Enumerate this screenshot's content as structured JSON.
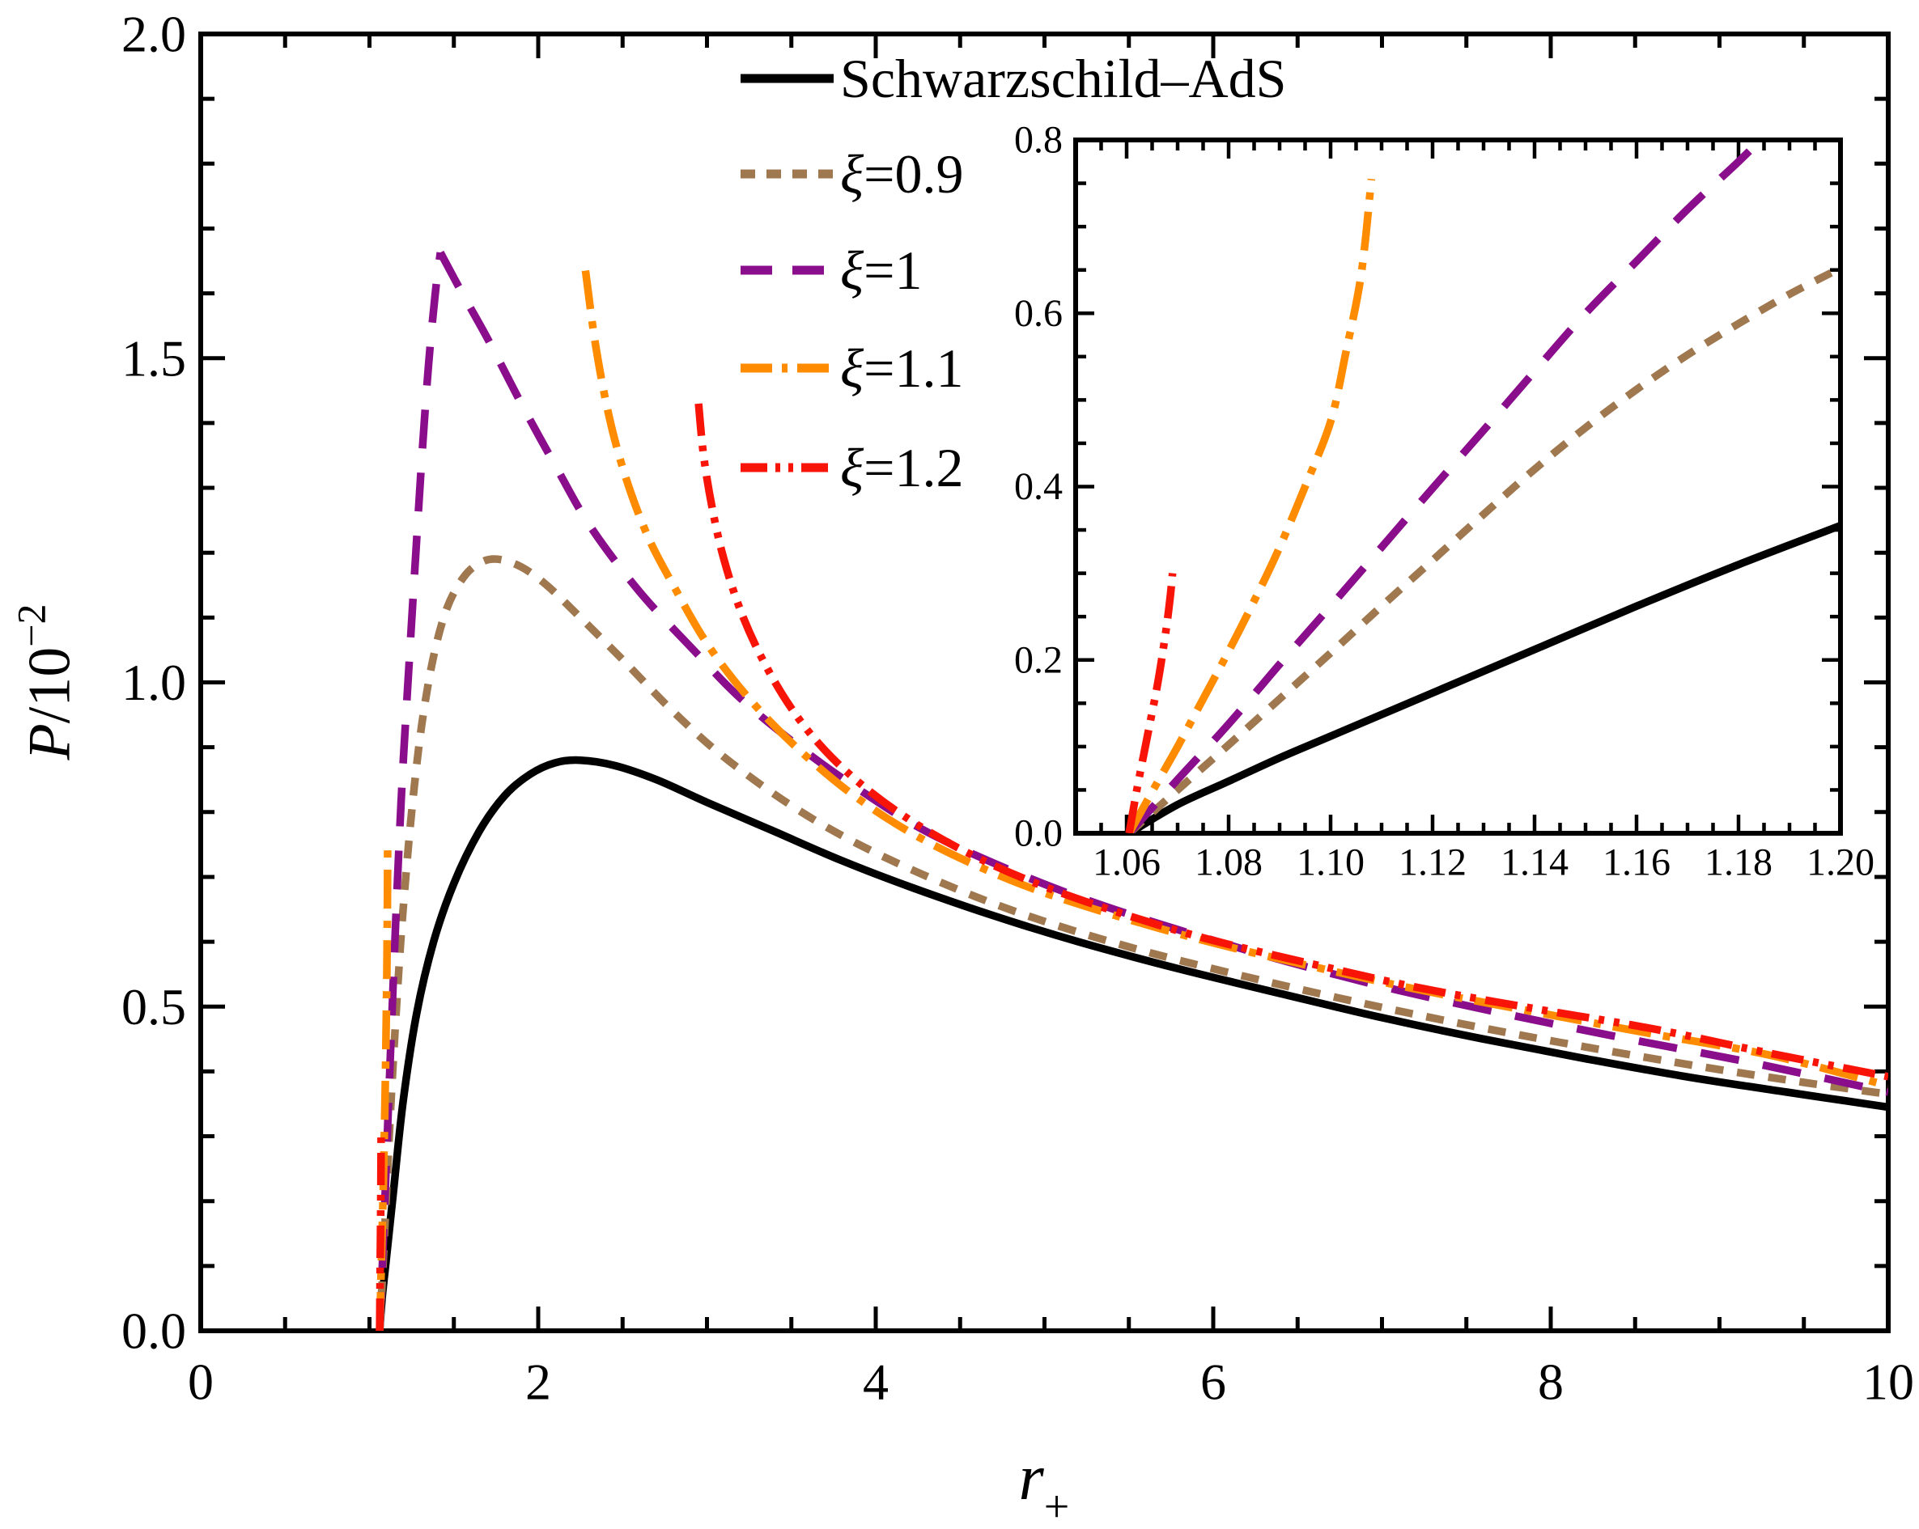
{
  "figure": {
    "background": "#ffffff",
    "text_color": "#000000"
  },
  "chart_data": {
    "type": "line",
    "title": "",
    "xlabel": {
      "base": "r",
      "sub": "+"
    },
    "ylabel": {
      "var": "P",
      "rest": "/10",
      "exp": "−2"
    },
    "grid": false,
    "legend_position": "top-center-inside",
    "main": {
      "xlim": [
        0,
        10
      ],
      "ylim": [
        0,
        2.0
      ],
      "xticks": {
        "major": [
          0,
          2,
          4,
          6,
          8,
          10
        ],
        "labels": [
          "0",
          "2",
          "4",
          "6",
          "8",
          "10"
        ],
        "minor_step": 0.5
      },
      "yticks": {
        "major": [
          0,
          0.5,
          1.0,
          1.5,
          2.0
        ],
        "labels": [
          "0.0",
          "0.5",
          "1.0",
          "1.5",
          "2.0"
        ],
        "minor_step": 0.1
      }
    },
    "inset": {
      "xlim": [
        1.05,
        1.2
      ],
      "ylim": [
        0,
        0.8
      ],
      "xticks": {
        "major": [
          1.06,
          1.08,
          1.1,
          1.12,
          1.14,
          1.16,
          1.18,
          1.2
        ],
        "labels": [
          "1.06",
          "1.08",
          "1.10",
          "1.12",
          "1.14",
          "1.16",
          "1.18",
          "1.20"
        ],
        "minor_step": 0.005
      },
      "yticks": {
        "major": [
          0,
          0.2,
          0.4,
          0.6,
          0.8
        ],
        "labels": [
          "0.0",
          "0.2",
          "0.4",
          "0.6",
          "0.8"
        ],
        "minor_step": 0.05
      }
    },
    "series": [
      {
        "name": "Schwarzschild–AdS",
        "label_sym": "",
        "label_rest": "Schwarzschild–AdS",
        "color": "#000000",
        "dash": "solid",
        "main_segments": [
          [
            [
              1.0605,
              0
            ],
            [
              1.075,
              0.05
            ],
            [
              1.1,
              0.112
            ],
            [
              1.14,
              0.21
            ],
            [
              1.2,
              0.355
            ],
            [
              1.28,
              0.49
            ],
            [
              1.38,
              0.6
            ],
            [
              1.5,
              0.69
            ],
            [
              1.65,
              0.77
            ],
            [
              1.8,
              0.825
            ],
            [
              1.95,
              0.858
            ],
            [
              2.1,
              0.876
            ],
            [
              2.25,
              0.88
            ],
            [
              2.45,
              0.872
            ],
            [
              2.7,
              0.85
            ],
            [
              3.0,
              0.815
            ],
            [
              3.4,
              0.77
            ],
            [
              3.8,
              0.725
            ],
            [
              4.2,
              0.685
            ],
            [
              4.7,
              0.64
            ],
            [
              5.2,
              0.6
            ],
            [
              5.8,
              0.558
            ],
            [
              6.4,
              0.52
            ],
            [
              7.0,
              0.483
            ],
            [
              7.6,
              0.45
            ],
            [
              8.2,
              0.42
            ],
            [
              8.8,
              0.392
            ],
            [
              9.4,
              0.368
            ],
            [
              10.0,
              0.345
            ]
          ]
        ],
        "inset_points": [
          [
            1.0605,
            0
          ],
          [
            1.07,
            0.033
          ],
          [
            1.08,
            0.06
          ],
          [
            1.09,
            0.087
          ],
          [
            1.1,
            0.112
          ],
          [
            1.12,
            0.162
          ],
          [
            1.14,
            0.212
          ],
          [
            1.16,
            0.262
          ],
          [
            1.18,
            0.31
          ],
          [
            1.2,
            0.355
          ]
        ]
      },
      {
        "name": "xi=0.9",
        "label_sym": "ξ",
        "label_rest": "=0.9",
        "color": "#A0784F",
        "dash": "dot",
        "main_segments": [
          [
            [
              1.0605,
              0
            ],
            [
              1.08,
              0.1
            ],
            [
              1.1,
              0.208
            ],
            [
              1.13,
              0.365
            ],
            [
              1.165,
              0.52
            ],
            [
              1.2,
              0.652
            ],
            [
              1.25,
              0.8
            ],
            [
              1.31,
              0.935
            ],
            [
              1.38,
              1.04
            ],
            [
              1.46,
              1.115
            ],
            [
              1.56,
              1.163
            ],
            [
              1.66,
              1.185
            ],
            [
              1.76,
              1.19
            ],
            [
              1.9,
              1.178
            ],
            [
              2.05,
              1.15
            ],
            [
              2.25,
              1.1
            ],
            [
              2.5,
              1.035
            ],
            [
              2.8,
              0.955
            ],
            [
              3.1,
              0.885
            ],
            [
              3.5,
              0.81
            ],
            [
              3.9,
              0.75
            ],
            [
              4.4,
              0.69
            ],
            [
              4.9,
              0.64
            ],
            [
              5.5,
              0.592
            ],
            [
              6.1,
              0.552
            ],
            [
              6.8,
              0.51
            ],
            [
              7.5,
              0.472
            ],
            [
              8.2,
              0.438
            ],
            [
              8.9,
              0.407
            ],
            [
              9.5,
              0.383
            ],
            [
              10.0,
              0.365
            ]
          ]
        ],
        "inset_points": [
          [
            1.0605,
            0
          ],
          [
            1.07,
            0.05
          ],
          [
            1.08,
            0.102
          ],
          [
            1.09,
            0.155
          ],
          [
            1.1,
            0.208
          ],
          [
            1.11,
            0.262
          ],
          [
            1.12,
            0.315
          ],
          [
            1.13,
            0.368
          ],
          [
            1.14,
            0.42
          ],
          [
            1.15,
            0.468
          ],
          [
            1.16,
            0.512
          ],
          [
            1.17,
            0.552
          ],
          [
            1.18,
            0.588
          ],
          [
            1.19,
            0.622
          ],
          [
            1.2,
            0.652
          ]
        ]
      },
      {
        "name": "xi=1",
        "label_sym": "ξ",
        "label_rest": "=1",
        "color": "#8A0D8C",
        "dash": "dash",
        "main_segments": [
          [
            [
              1.0605,
              0
            ],
            [
              1.08,
              0.126
            ],
            [
              1.1,
              0.262
            ],
            [
              1.12,
              0.398
            ],
            [
              1.14,
              0.533
            ],
            [
              1.16,
              0.66
            ],
            [
              1.18,
              0.775
            ],
            [
              1.2,
              0.878
            ],
            [
              1.235,
              1.03
            ],
            [
              1.27,
              1.18
            ],
            [
              1.31,
              1.345
            ],
            [
              1.35,
              1.49
            ],
            [
              1.39,
              1.6
            ],
            [
              1.42,
              1.663
            ]
          ],
          [
            [
              1.42,
              1.663
            ],
            [
              1.55,
              1.6
            ],
            [
              1.7,
              1.53
            ],
            [
              1.9,
              1.43
            ],
            [
              2.1,
              1.335
            ],
            [
              2.31,
              1.24
            ],
            [
              2.6,
              1.14
            ],
            [
              2.92,
              1.05
            ],
            [
              3.2,
              0.975
            ],
            [
              3.55,
              0.9
            ],
            [
              3.9,
              0.835
            ],
            [
              4.3,
              0.77
            ],
            [
              4.8,
              0.71
            ],
            [
              5.3,
              0.66
            ],
            [
              5.9,
              0.61
            ],
            [
              6.5,
              0.565
            ],
            [
              7.1,
              0.525
            ],
            [
              7.8,
              0.485
            ],
            [
              8.5,
              0.448
            ],
            [
              9.2,
              0.413
            ],
            [
              10.0,
              0.368
            ]
          ]
        ],
        "inset_points": [
          [
            1.0605,
            0
          ],
          [
            1.07,
            0.062
          ],
          [
            1.08,
            0.126
          ],
          [
            1.09,
            0.195
          ],
          [
            1.1,
            0.262
          ],
          [
            1.11,
            0.33
          ],
          [
            1.12,
            0.398
          ],
          [
            1.13,
            0.465
          ],
          [
            1.14,
            0.533
          ],
          [
            1.15,
            0.6
          ],
          [
            1.16,
            0.66
          ],
          [
            1.17,
            0.72
          ],
          [
            1.18,
            0.775
          ],
          [
            1.186,
            0.81
          ]
        ]
      },
      {
        "name": "xi=1.1",
        "label_sym": "ξ",
        "label_rest": "=1.1",
        "color": "#FF8C00",
        "dash": "dashdot",
        "main_segments": [
          [
            [
              1.0605,
              0
            ],
            [
              1.065,
              0.048
            ],
            [
              1.07,
              0.1
            ],
            [
              1.076,
              0.16
            ],
            [
              1.082,
              0.225
            ],
            [
              1.088,
              0.3
            ],
            [
              1.094,
              0.385
            ],
            [
              1.099,
              0.47
            ],
            [
              1.103,
              0.555
            ],
            [
              1.106,
              0.645
            ],
            [
              1.108,
              0.755
            ]
          ],
          [
            [
              2.28,
              1.635
            ],
            [
              2.34,
              1.52
            ],
            [
              2.42,
              1.41
            ],
            [
              2.52,
              1.315
            ],
            [
              2.65,
              1.225
            ],
            [
              2.8,
              1.15
            ],
            [
              3.0,
              1.06
            ],
            [
              3.25,
              0.975
            ],
            [
              3.55,
              0.895
            ],
            [
              3.9,
              0.82
            ],
            [
              4.3,
              0.755
            ],
            [
              4.8,
              0.695
            ],
            [
              5.3,
              0.65
            ],
            [
              5.9,
              0.605
            ],
            [
              6.5,
              0.567
            ],
            [
              7.2,
              0.527
            ],
            [
              7.9,
              0.492
            ],
            [
              8.6,
              0.458
            ],
            [
              9.3,
              0.425
            ],
            [
              10.0,
              0.378
            ]
          ]
        ],
        "inset_points": [
          [
            1.0605,
            0
          ],
          [
            1.065,
            0.048
          ],
          [
            1.07,
            0.1
          ],
          [
            1.075,
            0.155
          ],
          [
            1.08,
            0.21
          ],
          [
            1.085,
            0.268
          ],
          [
            1.09,
            0.33
          ],
          [
            1.095,
            0.4
          ],
          [
            1.1,
            0.475
          ],
          [
            1.103,
            0.555
          ],
          [
            1.106,
            0.645
          ],
          [
            1.108,
            0.755
          ]
        ]
      },
      {
        "name": "xi=1.2",
        "label_sym": "ξ",
        "label_rest": "=1.2",
        "color": "#F91408",
        "dash": "dashdotdot",
        "main_segments": [
          [
            [
              1.0605,
              0
            ],
            [
              1.062,
              0.05
            ],
            [
              1.064,
              0.11
            ],
            [
              1.066,
              0.17
            ],
            [
              1.0675,
              0.225
            ],
            [
              1.0685,
              0.27
            ],
            [
              1.069,
              0.3
            ]
          ],
          [
            [
              2.95,
              1.43
            ],
            [
              2.98,
              1.35
            ],
            [
              3.03,
              1.27
            ],
            [
              3.1,
              1.19
            ],
            [
              3.2,
              1.11
            ],
            [
              3.33,
              1.035
            ],
            [
              3.5,
              0.96
            ],
            [
              3.7,
              0.895
            ],
            [
              3.95,
              0.835
            ],
            [
              4.25,
              0.78
            ],
            [
              4.6,
              0.73
            ],
            [
              5.0,
              0.685
            ],
            [
              5.5,
              0.64
            ],
            [
              6.0,
              0.602
            ],
            [
              6.6,
              0.565
            ],
            [
              7.2,
              0.53
            ],
            [
              7.9,
              0.497
            ],
            [
              8.6,
              0.466
            ],
            [
              9.3,
              0.428
            ],
            [
              10.0,
              0.392
            ]
          ]
        ],
        "inset_points": [
          [
            1.0605,
            0
          ],
          [
            1.062,
            0.05
          ],
          [
            1.064,
            0.11
          ],
          [
            1.066,
            0.17
          ],
          [
            1.0675,
            0.225
          ],
          [
            1.0685,
            0.27
          ],
          [
            1.069,
            0.3
          ]
        ]
      }
    ]
  }
}
